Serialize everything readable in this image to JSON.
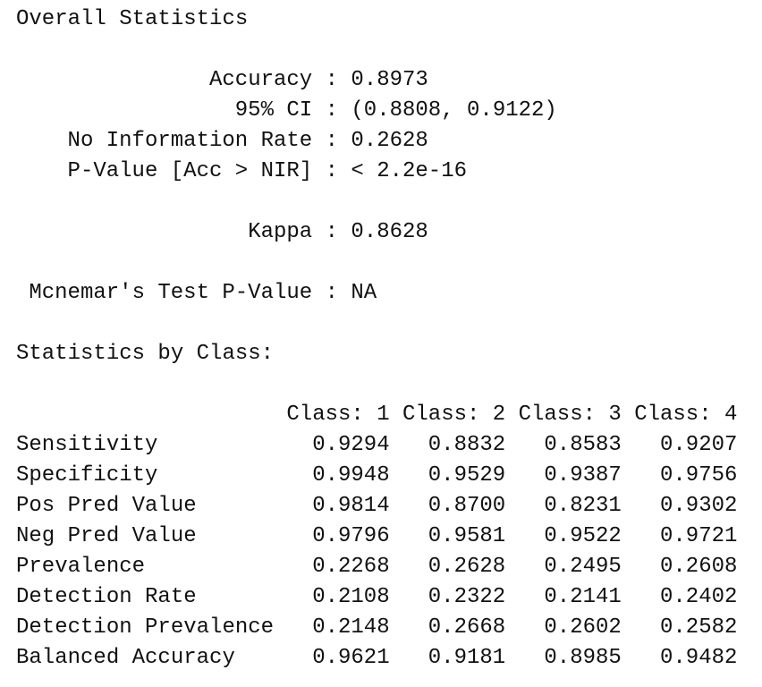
{
  "overall": {
    "title": "Overall Statistics",
    "separator": ":",
    "groups": [
      [
        {
          "label": "Accuracy",
          "value": "0.8973"
        },
        {
          "label": "95% CI",
          "value": "(0.8808, 0.9122)"
        },
        {
          "label": "No Information Rate",
          "value": "0.2628"
        },
        {
          "label": "P-Value [Acc > NIR]",
          "value": "< 2.2e-16"
        }
      ],
      [
        {
          "label": "Kappa",
          "value": "0.8628"
        }
      ],
      [
        {
          "label": "Mcnemar's Test P-Value",
          "value": "NA"
        }
      ]
    ]
  },
  "by_class": {
    "title": "Statistics by Class:",
    "columns": [
      "Class: 1",
      "Class: 2",
      "Class: 3",
      "Class: 4"
    ],
    "rows": [
      {
        "label": "Sensitivity",
        "values": [
          "0.9294",
          "0.8832",
          "0.8583",
          "0.9207"
        ]
      },
      {
        "label": "Specificity",
        "values": [
          "0.9948",
          "0.9529",
          "0.9387",
          "0.9756"
        ]
      },
      {
        "label": "Pos Pred Value",
        "values": [
          "0.9814",
          "0.8700",
          "0.8231",
          "0.9302"
        ]
      },
      {
        "label": "Neg Pred Value",
        "values": [
          "0.9796",
          "0.9581",
          "0.9522",
          "0.9721"
        ]
      },
      {
        "label": "Prevalence",
        "values": [
          "0.2268",
          "0.2628",
          "0.2495",
          "0.2608"
        ]
      },
      {
        "label": "Detection Rate",
        "values": [
          "0.2108",
          "0.2322",
          "0.2141",
          "0.2402"
        ]
      },
      {
        "label": "Detection Prevalence",
        "values": [
          "0.2148",
          "0.2668",
          "0.2602",
          "0.2582"
        ]
      },
      {
        "label": "Balanced Accuracy",
        "values": [
          "0.9621",
          "0.9181",
          "0.8985",
          "0.9482"
        ]
      }
    ]
  }
}
